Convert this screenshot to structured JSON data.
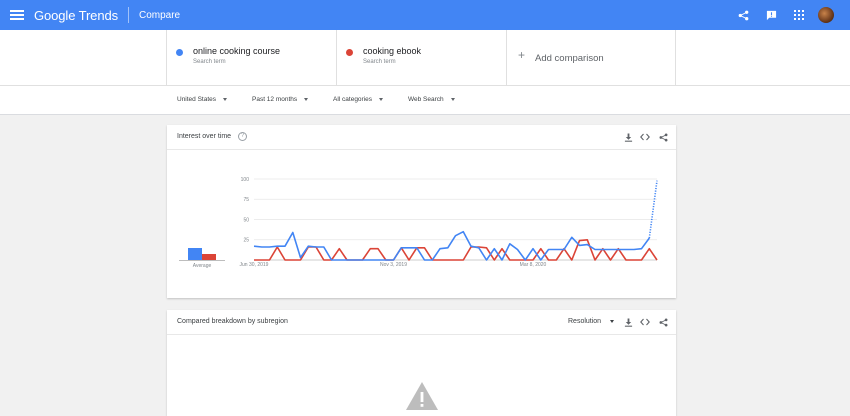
{
  "app": {
    "logo_text": "Google Trends",
    "page_title": "Compare"
  },
  "search_terms": [
    {
      "name": "online cooking course",
      "sub": "Search term",
      "color": "#4285f4"
    },
    {
      "name": "cooking ebook",
      "sub": "Search term",
      "color": "#db4437"
    }
  ],
  "add_comparison": {
    "plus": "+",
    "label": "Add comparison"
  },
  "filters": {
    "region": "United States",
    "period": "Past 12 months",
    "category": "All categories",
    "search_type": "Web Search"
  },
  "interest_card": {
    "title": "Interest over time",
    "help": "?",
    "average_label": "Average"
  },
  "subregion_card": {
    "title": "Compared breakdown by subregion",
    "resolution_label": "Resolution"
  },
  "colors": {
    "blue": "#4285f4",
    "red": "#db4437",
    "topbar": "#4285f4"
  },
  "chart_data": {
    "type": "line",
    "x_tick_labels": [
      "Jun 30, 2019",
      "Nov 3, 2019",
      "Mar 8, 2020"
    ],
    "y_tick_labels": [
      "100",
      "75",
      "50",
      "25"
    ],
    "ylim": [
      0,
      100
    ],
    "grid": true,
    "x_count": 53,
    "x_tick_indices": [
      0,
      18,
      36
    ],
    "average": [
      13,
      6
    ],
    "series": [
      {
        "name": "online cooking course",
        "color": "#4285f4",
        "partial_last_points": 1,
        "values": [
          17,
          16,
          16,
          17,
          17,
          34,
          3,
          17,
          16,
          16,
          0,
          0,
          0,
          0,
          0,
          0,
          0,
          0,
          0,
          15,
          15,
          15,
          0,
          0,
          14,
          15,
          30,
          35,
          17,
          15,
          0,
          14,
          0,
          20,
          13,
          0,
          14,
          0,
          13,
          13,
          13,
          28,
          18,
          19,
          13,
          13,
          13,
          13,
          13,
          13,
          14,
          27,
          98
        ]
      },
      {
        "name": "cooking ebook",
        "color": "#db4437",
        "values": [
          0,
          0,
          0,
          16,
          0,
          0,
          0,
          16,
          16,
          0,
          0,
          14,
          0,
          0,
          0,
          14,
          14,
          0,
          0,
          15,
          0,
          15,
          15,
          0,
          0,
          0,
          0,
          0,
          16,
          16,
          15,
          0,
          14,
          0,
          0,
          0,
          0,
          14,
          0,
          0,
          14,
          0,
          24,
          25,
          0,
          14,
          0,
          14,
          0,
          0,
          0,
          14,
          0
        ]
      }
    ]
  }
}
